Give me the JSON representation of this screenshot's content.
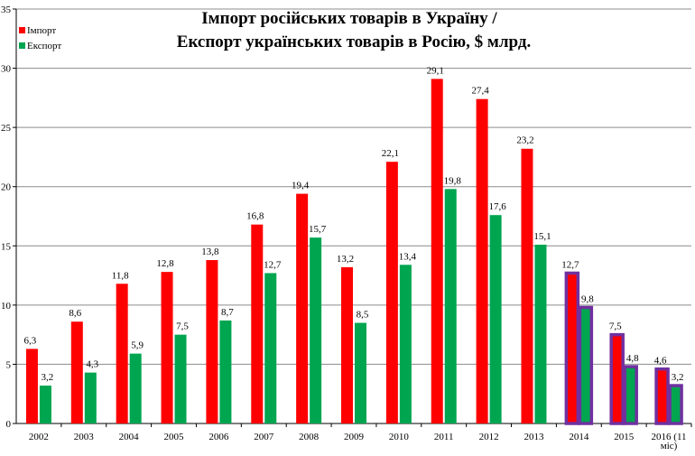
{
  "chart_data": {
    "type": "bar",
    "title_lines": [
      "Імпорт російських товарів в Україну /",
      "Експорт українських товарів в Росію,  $  млрд."
    ],
    "categories": [
      "2002",
      "2003",
      "2004",
      "2005",
      "2006",
      "2007",
      "2008",
      "2009",
      "2010",
      "2011",
      "2012",
      "2013",
      "2014",
      "2015",
      "2016 (11 міс)"
    ],
    "category_lines": [
      [
        "2002"
      ],
      [
        "2003"
      ],
      [
        "2004"
      ],
      [
        "2005"
      ],
      [
        "2006"
      ],
      [
        "2007"
      ],
      [
        "2008"
      ],
      [
        "2009"
      ],
      [
        "2010"
      ],
      [
        "2011"
      ],
      [
        "2012"
      ],
      [
        "2013"
      ],
      [
        "2014"
      ],
      [
        "2015"
      ],
      [
        "2016 (11",
        "міс)"
      ]
    ],
    "series": [
      {
        "name": "Імпорт",
        "color": "#ff0000",
        "values": [
          6.3,
          8.6,
          11.8,
          12.8,
          13.8,
          16.8,
          19.4,
          13.2,
          22.1,
          29.1,
          27.4,
          23.2,
          12.7,
          7.5,
          4.6
        ],
        "labels": [
          "6,3",
          "8,6",
          "11,8",
          "12,8",
          "13,8",
          "16,8",
          "19,4",
          "13,2",
          "22,1",
          "29,1",
          "27,4",
          "23,2",
          "12,7",
          "7,5",
          "4,6"
        ]
      },
      {
        "name": "Експорт",
        "color": "#00a550",
        "values": [
          3.2,
          4.3,
          5.9,
          7.5,
          8.7,
          12.7,
          15.7,
          8.5,
          13.4,
          19.8,
          17.6,
          15.1,
          9.8,
          4.8,
          3.2
        ],
        "labels": [
          "3,2",
          "4,3",
          "5,9",
          "7,5",
          "8,7",
          "12,7",
          "15,7",
          "8,5",
          "13,4",
          "19,8",
          "17,6",
          "15,1",
          "9,8",
          "4,8",
          "3,2"
        ]
      }
    ],
    "ylim": [
      0,
      35
    ],
    "yticks": [
      0,
      5,
      10,
      15,
      20,
      25,
      30,
      35
    ],
    "highlighted_categories": [
      "2014",
      "2015",
      "2016 (11 міс)"
    ],
    "highlight_color": "#7030a0",
    "grid": true,
    "legend_position": "top-left"
  }
}
